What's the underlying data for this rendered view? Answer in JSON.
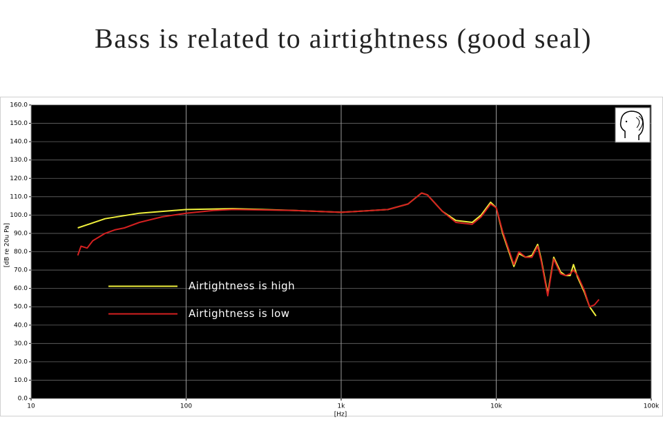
{
  "chart_data": {
    "type": "line",
    "title": "Bass is related to airtightness (good seal)",
    "x_label": "[Hz]",
    "y_label": "[dB re 20u Pa]",
    "xscale": "log",
    "xlim": [
      10,
      100000
    ],
    "xticks": [
      10,
      100,
      {
        "value": 1000,
        "label": "1k"
      },
      {
        "value": 10000,
        "label": "10k"
      },
      {
        "value": 100000,
        "label": "100k"
      }
    ],
    "ylim": [
      0,
      160
    ],
    "yticks": [
      {
        "value": 0,
        "label": "0.0"
      },
      {
        "value": 10,
        "label": "10.0"
      },
      {
        "value": 20,
        "label": "20.0"
      },
      {
        "value": 30,
        "label": "30.0"
      },
      {
        "value": 40,
        "label": "40.0"
      },
      {
        "value": 50,
        "label": "50.0"
      },
      {
        "value": 60,
        "label": "60.0"
      },
      {
        "value": 70,
        "label": "70.0"
      },
      {
        "value": 80,
        "label": "80.0"
      },
      {
        "value": 90,
        "label": "90.0"
      },
      {
        "value": 100,
        "label": "100.0"
      },
      {
        "value": 110,
        "label": "110.0"
      },
      {
        "value": 120,
        "label": "120.0"
      },
      {
        "value": 130,
        "label": "130.0"
      },
      {
        "value": 140,
        "label": "140.0"
      },
      {
        "value": 150,
        "label": "150.0"
      },
      {
        "value": 160,
        "label": "160.0"
      }
    ],
    "grid": true,
    "legend": "center left",
    "series": [
      {
        "name": "Airtightness is high",
        "color": "#f0f03c",
        "x": [
          20,
          30,
          50,
          100,
          200,
          500,
          1000,
          2000,
          2700,
          3300,
          3600,
          4500,
          5500,
          7000,
          8000,
          9200,
          10000,
          11000,
          13000,
          14000,
          15500,
          17000,
          18500,
          19500,
          21500,
          23500,
          26000,
          28000,
          30000,
          31500,
          33500,
          37000,
          40000,
          44000
        ],
        "values": [
          93,
          98,
          101,
          103,
          103.5,
          102.5,
          101.5,
          103,
          106,
          112,
          111,
          102,
          97,
          96,
          100,
          107,
          104,
          90,
          72,
          79,
          77,
          78,
          84,
          76,
          57,
          77,
          69,
          67,
          67,
          73,
          66,
          58,
          50,
          45
        ]
      },
      {
        "name": "Airtightness is low",
        "color": "#d42020",
        "x": [
          20,
          21,
          23,
          25,
          30,
          35,
          40,
          50,
          70,
          100,
          150,
          200,
          500,
          1000,
          2000,
          2700,
          3300,
          3600,
          4500,
          5500,
          7000,
          8000,
          9200,
          10000,
          11000,
          13000,
          14000,
          15500,
          17000,
          18500,
          19500,
          21500,
          23500,
          26000,
          28000,
          30000,
          31500,
          33500,
          37000,
          40000,
          43000,
          46000
        ],
        "values": [
          78,
          83,
          82,
          86,
          90,
          92,
          93,
          96,
          99,
          101,
          102.5,
          103,
          102.5,
          101.5,
          103,
          106,
          112,
          111,
          102,
          96,
          95,
          99,
          106,
          104,
          91,
          73,
          80,
          77,
          77,
          83,
          75,
          56,
          76,
          68,
          67,
          68,
          70,
          67,
          59,
          50,
          51,
          54
        ]
      }
    ]
  }
}
